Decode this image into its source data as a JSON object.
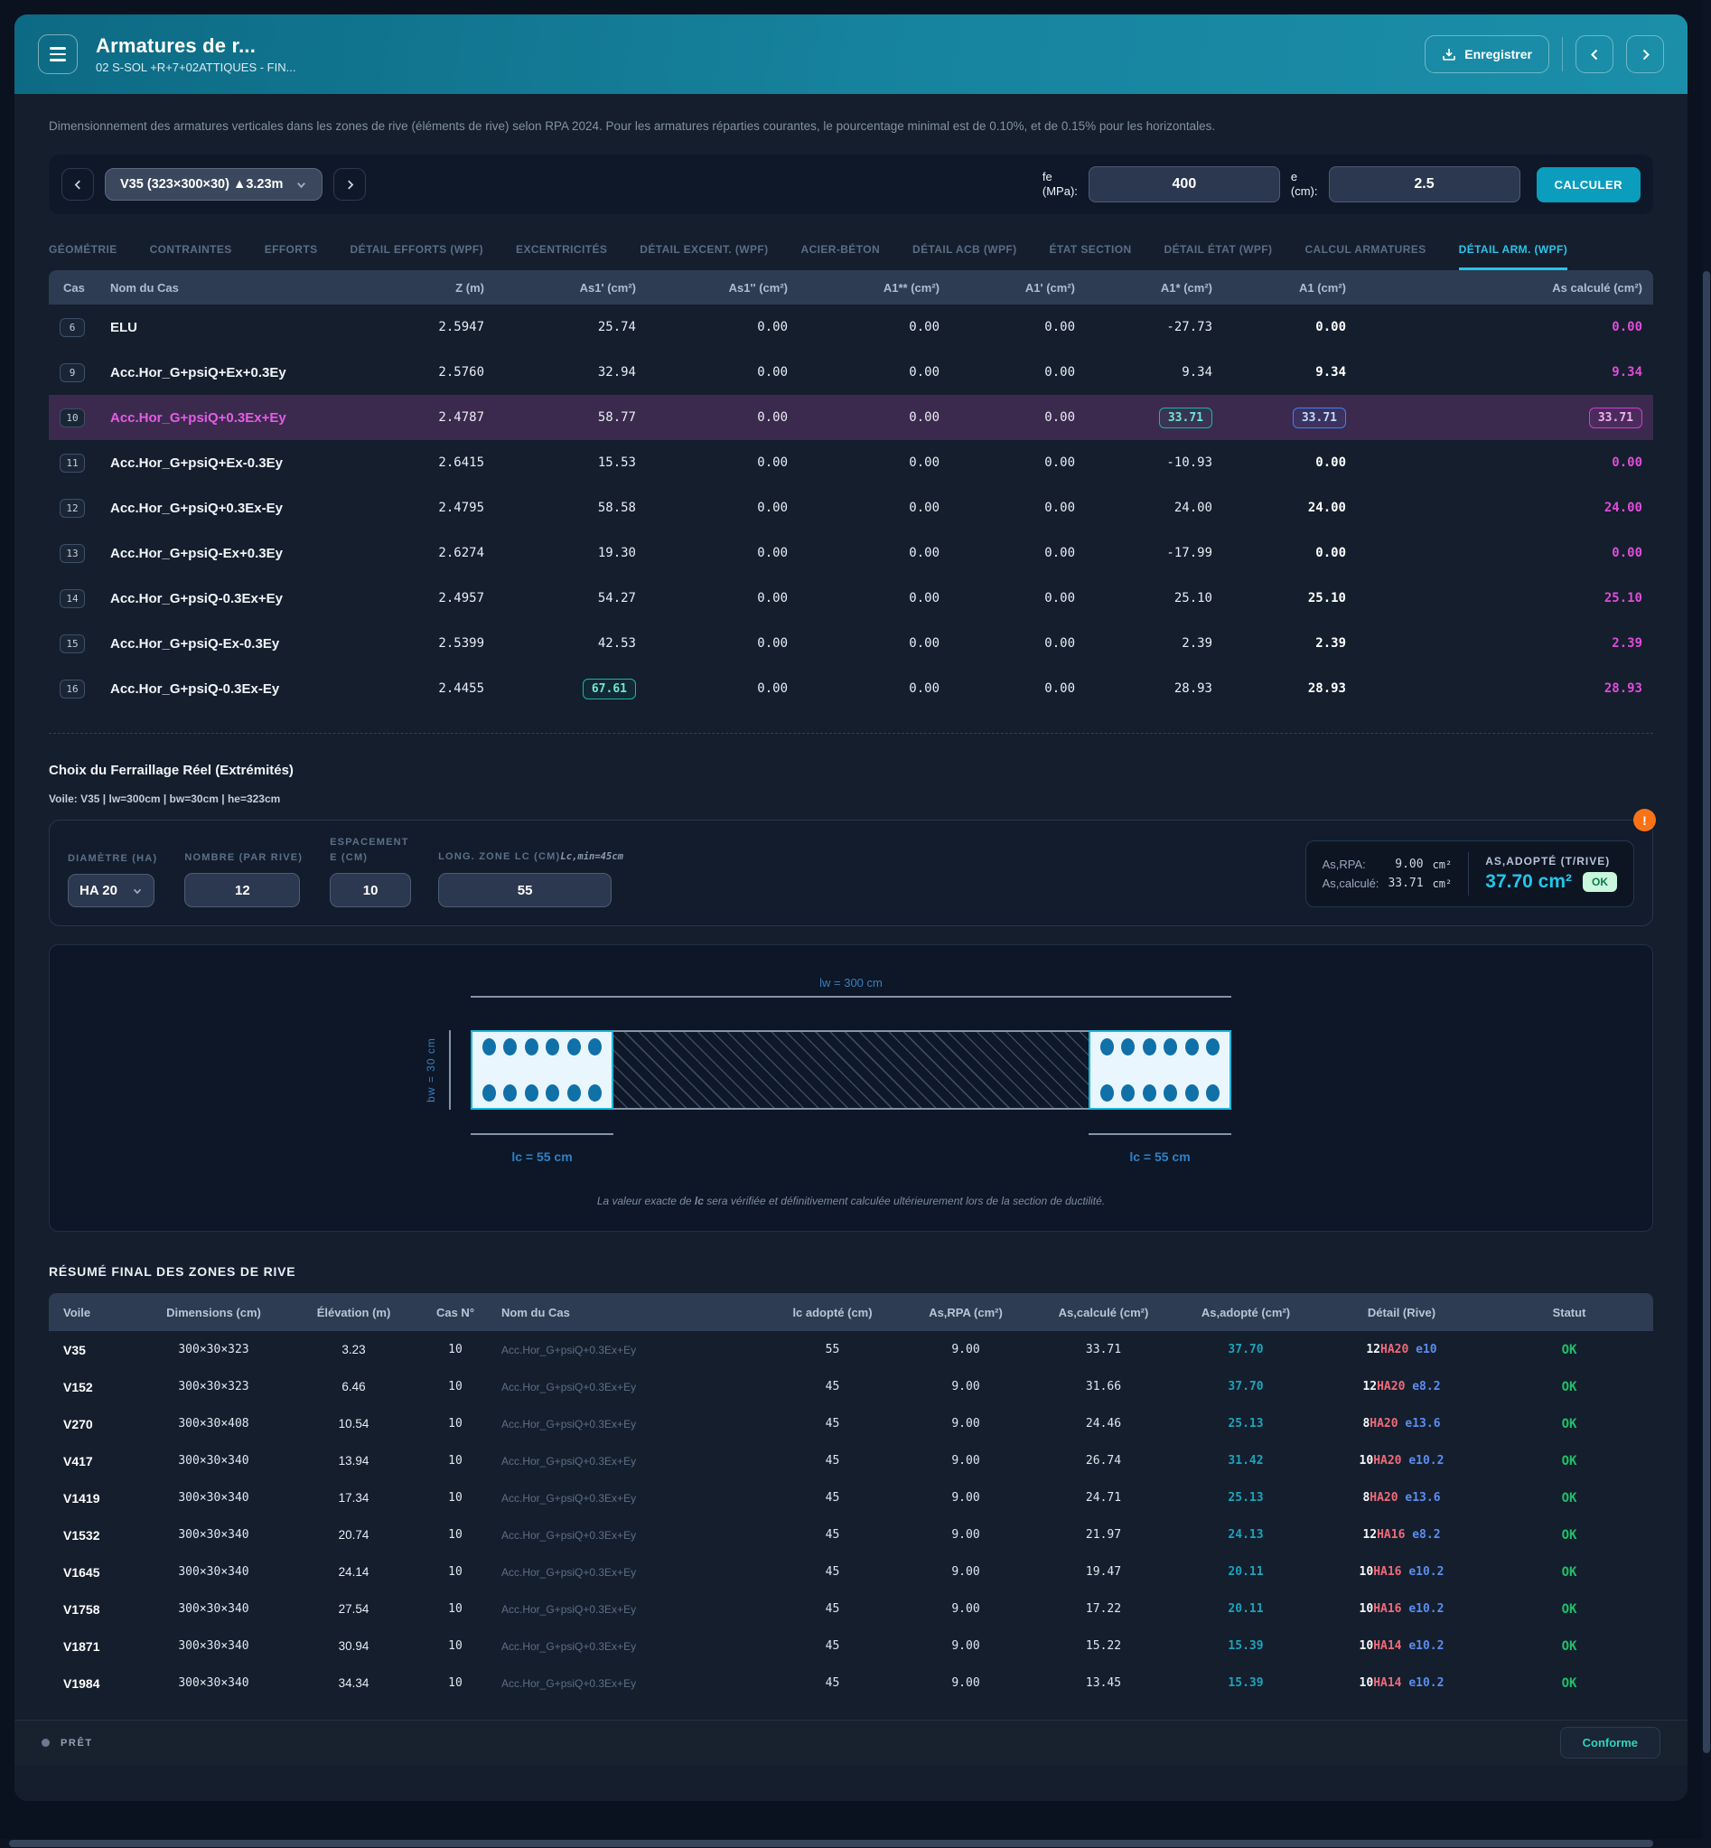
{
  "header": {
    "title": "Armatures de r...",
    "subtitle": "02 S-SOL +R+7+02ATTIQUES - FIN...",
    "save_label": "Enregistrer"
  },
  "description": "Dimensionnement des armatures verticales dans les zones de rive (éléments de rive) selon RPA 2024. Pour les armatures réparties courantes, le pourcentage minimal est de 0.10%, et de 0.15% pour les horizontales.",
  "selector": {
    "value": "V35 (323×300×30) ▲3.23m",
    "fe_label_line1": "fe",
    "fe_label_line2": "(MPa):",
    "fe_value": "400",
    "e_label_line1": "e",
    "e_label_line2": "(cm):",
    "e_value": "2.5",
    "calc_label": "CALCULER"
  },
  "tabs": {
    "labels": [
      "GÉOMÉTRIE",
      "CONTRAINTES",
      "EFFORTS",
      "DÉTAIL EFFORTS (WPF)",
      "EXCENTRICITÉS",
      "DÉTAIL EXCENT. (WPF)",
      "ACIER-BÉTON",
      "DÉTAIL ACB (WPF)",
      "ÉTAT SECTION",
      "DÉTAIL ÉTAT (WPF)",
      "CALCUL ARMATURES",
      "DÉTAIL ARM. (WPF)"
    ],
    "active_index": 11
  },
  "main_table": {
    "columns": [
      "Cas",
      "Nom du Cas",
      "Z (m)",
      "As1' (cm²)",
      "As1'' (cm²)",
      "A1** (cm²)",
      "A1' (cm²)",
      "A1* (cm²)",
      "A1 (cm²)",
      "As calculé (cm²)"
    ],
    "rows": [
      {
        "num": "6",
        "name": "ELU",
        "selected": false,
        "z": "2.5947",
        "as1p": "25.74",
        "as1pp": "0.00",
        "a1dd": "0.00",
        "a1p": "0.00",
        "a1star": "-27.73",
        "a1": "0.00",
        "ascalc": "0.00"
      },
      {
        "num": "9",
        "name": "Acc.Hor_G+psiQ+Ex+0.3Ey",
        "selected": false,
        "z": "2.5760",
        "as1p": "32.94",
        "as1pp": "0.00",
        "a1dd": "0.00",
        "a1p": "0.00",
        "a1star": "9.34",
        "a1": "9.34",
        "ascalc": "9.34"
      },
      {
        "num": "10",
        "name": "Acc.Hor_G+psiQ+0.3Ex+Ey",
        "selected": true,
        "z": "2.4787",
        "as1p": "58.77",
        "as1pp": "0.00",
        "a1dd": "0.00",
        "a1p": "0.00",
        "a1star": {
          "v": "33.71",
          "box": "teal"
        },
        "a1": {
          "v": "33.71",
          "box": "blue"
        },
        "ascalc": {
          "v": "33.71",
          "box": "magenta"
        }
      },
      {
        "num": "11",
        "name": "Acc.Hor_G+psiQ+Ex-0.3Ey",
        "selected": false,
        "z": "2.6415",
        "as1p": "15.53",
        "as1pp": "0.00",
        "a1dd": "0.00",
        "a1p": "0.00",
        "a1star": "-10.93",
        "a1": "0.00",
        "ascalc": "0.00"
      },
      {
        "num": "12",
        "name": "Acc.Hor_G+psiQ+0.3Ex-Ey",
        "selected": false,
        "z": "2.4795",
        "as1p": "58.58",
        "as1pp": "0.00",
        "a1dd": "0.00",
        "a1p": "0.00",
        "a1star": "24.00",
        "a1": "24.00",
        "ascalc": "24.00"
      },
      {
        "num": "13",
        "name": "Acc.Hor_G+psiQ-Ex+0.3Ey",
        "selected": false,
        "z": "2.6274",
        "as1p": "19.30",
        "as1pp": "0.00",
        "a1dd": "0.00",
        "a1p": "0.00",
        "a1star": "-17.99",
        "a1": "0.00",
        "ascalc": "0.00"
      },
      {
        "num": "14",
        "name": "Acc.Hor_G+psiQ-0.3Ex+Ey",
        "selected": false,
        "z": "2.4957",
        "as1p": "54.27",
        "as1pp": "0.00",
        "a1dd": "0.00",
        "a1p": "0.00",
        "a1star": "25.10",
        "a1": "25.10",
        "ascalc": "25.10"
      },
      {
        "num": "15",
        "name": "Acc.Hor_G+psiQ-Ex-0.3Ey",
        "selected": false,
        "z": "2.5399",
        "as1p": "42.53",
        "as1pp": "0.00",
        "a1dd": "0.00",
        "a1p": "0.00",
        "a1star": "2.39",
        "a1": "2.39",
        "ascalc": "2.39"
      },
      {
        "num": "16",
        "name": "Acc.Hor_G+psiQ-0.3Ex-Ey",
        "selected": false,
        "z": "2.4455",
        "as1p": {
          "v": "67.61",
          "box": "teal"
        },
        "as1pp": "0.00",
        "a1dd": "0.00",
        "a1p": "0.00",
        "a1star": "28.93",
        "a1": "28.93",
        "ascalc": "28.93"
      }
    ]
  },
  "ferraillage": {
    "title": "Choix du Ferraillage Réel (Extrémités)",
    "subtitle": "Voile: V35 | lw=300cm | bw=30cm | he=323cm",
    "diametre_label": "DIAMÈTRE (HA)",
    "diametre_value": "HA 20",
    "nombre_label": "NOMBRE (PAR RIVE)",
    "nombre_value": "12",
    "espacement_label_line1": "ESPACEMENT",
    "espacement_label_line2": "E (CM)",
    "espacement_value": "10",
    "long_label": "LONG. ZONE LC (CM)",
    "long_note": "Lc,min=45cm",
    "long_value": "55",
    "rpa_label": "As,RPA:",
    "rpa_value": "9.00",
    "rpa_unit": "cm²",
    "calc_label": "As,calculé:",
    "calc_value": "33.71",
    "calc_unit": "cm²",
    "adopt_label": "AS,ADOPTÉ (T/RIVE)",
    "adopt_value": "37.70 cm²",
    "ok_label": "OK",
    "warning_glyph": "!"
  },
  "diagram": {
    "lw_label": "lw = 300 cm",
    "bw_label": "bw = 30 cm",
    "lc_left_label": "lc = 55 cm",
    "lc_right_label": "lc = 55 cm",
    "bars_per_row": 6,
    "note_pre": "La valeur exacte de ",
    "note_bold": "lc",
    "note_post": " sera vérifiée et définitivement calculée ultérieurement lors de la section de ductilité."
  },
  "summary": {
    "title": "RÉSUMÉ FINAL DES ZONES DE RIVE",
    "columns": [
      "Voile",
      "Dimensions (cm)",
      "Élévation (m)",
      "Cas N°",
      "Nom du Cas",
      "lc adopté (cm)",
      "As,RPA (cm²)",
      "As,calculé (cm²)",
      "As,adopté (cm²)",
      "Détail (Rive)",
      "Statut"
    ],
    "rows": [
      {
        "voile": "V35",
        "dim": "300×30×323",
        "elev": "3.23",
        "cas": "10",
        "nom": "Acc.Hor_G+psiQ+0.3Ex+Ey",
        "lc": "55",
        "asrpa": "9.00",
        "ascalc": "33.71",
        "asadopte": "37.70",
        "detail_n": "12",
        "detail_ha": "HA20",
        "detail_e": "e10",
        "statut": "OK"
      },
      {
        "voile": "V152",
        "dim": "300×30×323",
        "elev": "6.46",
        "cas": "10",
        "nom": "Acc.Hor_G+psiQ+0.3Ex+Ey",
        "lc": "45",
        "asrpa": "9.00",
        "ascalc": "31.66",
        "asadopte": "37.70",
        "detail_n": "12",
        "detail_ha": "HA20",
        "detail_e": "e8.2",
        "statut": "OK"
      },
      {
        "voile": "V270",
        "dim": "300×30×408",
        "elev": "10.54",
        "cas": "10",
        "nom": "Acc.Hor_G+psiQ+0.3Ex+Ey",
        "lc": "45",
        "asrpa": "9.00",
        "ascalc": "24.46",
        "asadopte": "25.13",
        "detail_n": "8",
        "detail_ha": "HA20",
        "detail_e": "e13.6",
        "statut": "OK"
      },
      {
        "voile": "V417",
        "dim": "300×30×340",
        "elev": "13.94",
        "cas": "10",
        "nom": "Acc.Hor_G+psiQ+0.3Ex+Ey",
        "lc": "45",
        "asrpa": "9.00",
        "ascalc": "26.74",
        "asadopte": "31.42",
        "detail_n": "10",
        "detail_ha": "HA20",
        "detail_e": "e10.2",
        "statut": "OK"
      },
      {
        "voile": "V1419",
        "dim": "300×30×340",
        "elev": "17.34",
        "cas": "10",
        "nom": "Acc.Hor_G+psiQ+0.3Ex+Ey",
        "lc": "45",
        "asrpa": "9.00",
        "ascalc": "24.71",
        "asadopte": "25.13",
        "detail_n": "8",
        "detail_ha": "HA20",
        "detail_e": "e13.6",
        "statut": "OK"
      },
      {
        "voile": "V1532",
        "dim": "300×30×340",
        "elev": "20.74",
        "cas": "10",
        "nom": "Acc.Hor_G+psiQ+0.3Ex+Ey",
        "lc": "45",
        "asrpa": "9.00",
        "ascalc": "21.97",
        "asadopte": "24.13",
        "detail_n": "12",
        "detail_ha": "HA16",
        "detail_e": "e8.2",
        "statut": "OK"
      },
      {
        "voile": "V1645",
        "dim": "300×30×340",
        "elev": "24.14",
        "cas": "10",
        "nom": "Acc.Hor_G+psiQ+0.3Ex+Ey",
        "lc": "45",
        "asrpa": "9.00",
        "ascalc": "19.47",
        "asadopte": "20.11",
        "detail_n": "10",
        "detail_ha": "HA16",
        "detail_e": "e10.2",
        "statut": "OK"
      },
      {
        "voile": "V1758",
        "dim": "300×30×340",
        "elev": "27.54",
        "cas": "10",
        "nom": "Acc.Hor_G+psiQ+0.3Ex+Ey",
        "lc": "45",
        "asrpa": "9.00",
        "ascalc": "17.22",
        "asadopte": "20.11",
        "detail_n": "10",
        "detail_ha": "HA16",
        "detail_e": "e10.2",
        "statut": "OK"
      },
      {
        "voile": "V1871",
        "dim": "300×30×340",
        "elev": "30.94",
        "cas": "10",
        "nom": "Acc.Hor_G+psiQ+0.3Ex+Ey",
        "lc": "45",
        "asrpa": "9.00",
        "ascalc": "15.22",
        "asadopte": "15.39",
        "detail_n": "10",
        "detail_ha": "HA14",
        "detail_e": "e10.2",
        "statut": "OK"
      },
      {
        "voile": "V1984",
        "dim": "300×30×340",
        "elev": "34.34",
        "cas": "10",
        "nom": "Acc.Hor_G+psiQ+0.3Ex+Ey",
        "lc": "45",
        "asrpa": "9.00",
        "ascalc": "13.45",
        "asadopte": "15.39",
        "detail_n": "10",
        "detail_ha": "HA14",
        "detail_e": "e10.2",
        "statut": "OK"
      }
    ]
  },
  "footer": {
    "status": "PRÊT",
    "conforme_label": "Conforme"
  },
  "colors": {
    "accent_teal": "#0a9dbd",
    "active_tab": "#2ac4e8",
    "selected_row_bg": "#3c2a4e",
    "magenta": "#df4cd8",
    "adopt_cyan": "#24c6ea",
    "ok_green": "#1fc06a",
    "warning_orange": "#f97316"
  }
}
